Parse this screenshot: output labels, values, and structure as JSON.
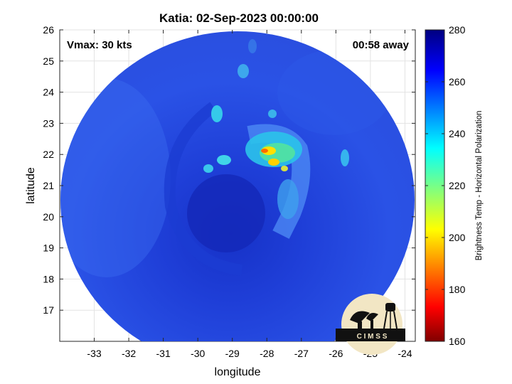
{
  "title": "Katia: 02-Sep-2023 00:00:00",
  "annotations": {
    "vmax": "Vmax: 30 kts",
    "away": "00:58 away"
  },
  "axes": {
    "xlabel": "longitude",
    "ylabel": "latitude",
    "xticks": [
      -33,
      -32,
      -31,
      -30,
      -29,
      -28,
      -27,
      -26,
      -25,
      -24
    ],
    "yticks": [
      17,
      18,
      19,
      20,
      21,
      22,
      23,
      24,
      25,
      26
    ],
    "xlim": [
      -34.0,
      -23.7
    ],
    "ylim": [
      16.0,
      26.0
    ]
  },
  "colorbar": {
    "label": "Brightness Temp - Horizontal Polarization",
    "ticks": [
      160,
      180,
      200,
      220,
      240,
      260,
      280
    ],
    "range": [
      160,
      280
    ],
    "colormap": "jet"
  },
  "logo": {
    "text": "C I M S S"
  },
  "colors": {
    "background_field": "#2a50e6",
    "center_field": "#1530c8",
    "warm_core": "#ffe000"
  }
}
